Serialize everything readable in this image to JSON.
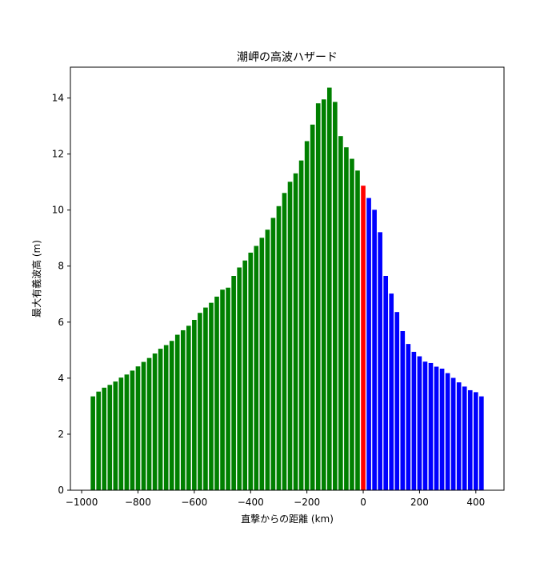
{
  "chart_data": {
    "type": "bar",
    "title": "潮岬の高波ハザード",
    "xlabel": "直撃からの距離 (km)",
    "ylabel": "最大有義波高 (m)",
    "xlim": [
      -1040,
      500
    ],
    "ylim": [
      0,
      15.1
    ],
    "x_ticks": [
      -1000,
      -800,
      -600,
      -400,
      -200,
      0,
      200,
      400
    ],
    "x_tick_labels": [
      "−1000",
      "−800",
      "−600",
      "−400",
      "−200",
      "0",
      "200",
      "400"
    ],
    "y_ticks": [
      0,
      2,
      4,
      6,
      8,
      10,
      12,
      14
    ],
    "y_tick_labels": [
      "0",
      "2",
      "4",
      "6",
      "8",
      "10",
      "12",
      "14"
    ],
    "bar_width_km": 16,
    "grid": false,
    "legend": "none",
    "series": [
      {
        "color": "#008000",
        "x": [
          -960,
          -940,
          -920,
          -900,
          -880,
          -860,
          -840,
          -820,
          -800,
          -780,
          -760,
          -740,
          -720,
          -700,
          -680,
          -660,
          -640,
          -620,
          -600,
          -580,
          -560,
          -540,
          -520,
          -500,
          -480,
          -460,
          -440,
          -420,
          -400,
          -380,
          -360,
          -340,
          -320,
          -300,
          -280,
          -260,
          -240,
          -220,
          -200,
          -180,
          -160,
          -140,
          -120,
          -100,
          -80,
          -60,
          -40,
          -20
        ],
        "values": [
          3.35,
          3.52,
          3.66,
          3.76,
          3.88,
          4.02,
          4.13,
          4.27,
          4.42,
          4.58,
          4.72,
          4.88,
          5.05,
          5.18,
          5.33,
          5.55,
          5.71,
          5.87,
          6.08,
          6.33,
          6.52,
          6.69,
          6.91,
          7.16,
          7.23,
          7.65,
          7.95,
          8.2,
          8.48,
          8.72,
          9.01,
          9.3,
          9.72,
          10.14,
          10.61,
          11.01,
          11.31,
          11.77,
          12.46,
          13.05,
          13.81,
          13.95,
          14.37,
          13.86,
          12.64,
          12.24,
          11.83,
          11.41
        ]
      },
      {
        "color": "#ff0000",
        "x": [
          0
        ],
        "values": [
          10.87
        ]
      },
      {
        "color": "#0000ff",
        "x": [
          20,
          40,
          60,
          80,
          100,
          120,
          140,
          160,
          180,
          200,
          220,
          240,
          260,
          280,
          300,
          320,
          340,
          360,
          380,
          400,
          420
        ],
        "values": [
          10.43,
          10.01,
          9.21,
          7.65,
          7.02,
          6.36,
          5.68,
          5.22,
          4.94,
          4.78,
          4.59,
          4.54,
          4.41,
          4.34,
          4.18,
          4.01,
          3.85,
          3.7,
          3.57,
          3.5,
          3.35
        ]
      }
    ]
  }
}
